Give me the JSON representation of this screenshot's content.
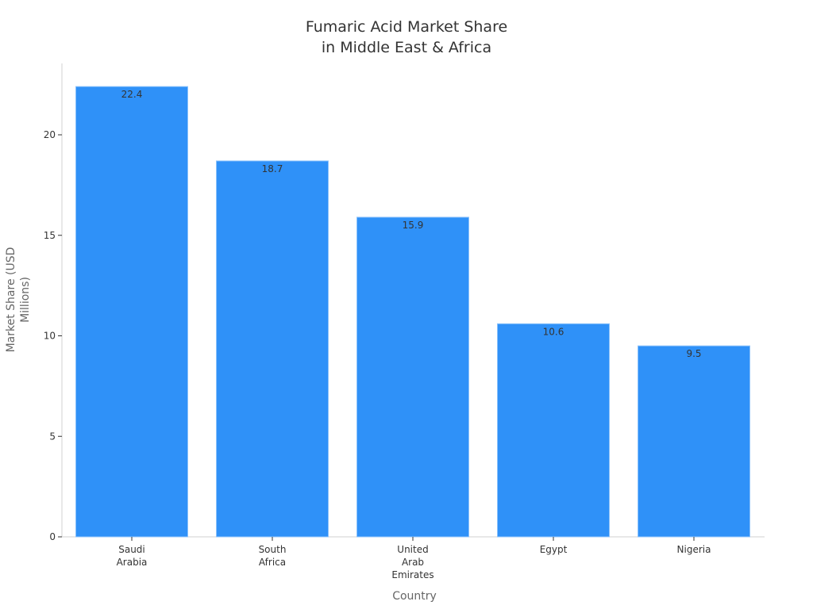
{
  "chart_data": {
    "type": "bar",
    "title": [
      "Fumaric Acid Market Share",
      "in Middle East & Africa"
    ],
    "xlabel": "Country",
    "ylabel": [
      "Market Share (USD",
      "Millions)"
    ],
    "categories": [
      [
        "Saudi",
        "Arabia"
      ],
      [
        "South",
        "Africa"
      ],
      [
        "United",
        "Arab",
        "Emirates"
      ],
      [
        "Egypt"
      ],
      [
        "Nigeria"
      ]
    ],
    "values": [
      22.4,
      18.7,
      15.9,
      10.6,
      9.5
    ],
    "value_labels": [
      "22.4",
      "18.7",
      "15.9",
      "10.6",
      "9.5"
    ],
    "yticks": [
      0,
      5,
      10,
      15,
      20
    ],
    "ylim": [
      0,
      23.5
    ],
    "grid": false,
    "bar_color": "#2f91f8",
    "bar_edge_color": "#8cc2fb"
  }
}
